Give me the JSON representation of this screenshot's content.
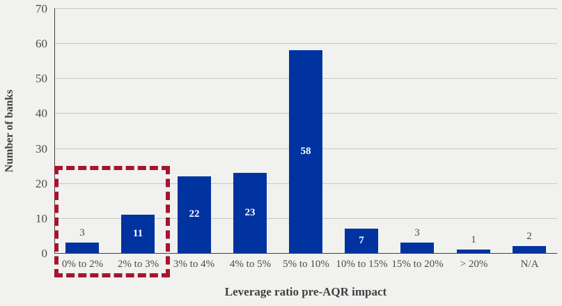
{
  "chart_data": {
    "type": "bar",
    "categories": [
      "0% to 2%",
      "2% to 3%",
      "3% to 4%",
      "4% to 5%",
      "5% to 10%",
      "10% to 15%",
      "15% to 20%",
      "> 20%",
      "N/A"
    ],
    "values": [
      3,
      11,
      22,
      23,
      58,
      7,
      3,
      1,
      2
    ],
    "data_label_placement": [
      "above",
      "inside",
      "inside",
      "inside",
      "inside",
      "inside",
      "above",
      "above",
      "above"
    ],
    "title": "",
    "xlabel": "Leverage ratio pre-AQR impact",
    "ylabel": "Number of banks",
    "ylim": [
      0,
      70
    ],
    "yticks": [
      0,
      10,
      20,
      30,
      40,
      50,
      60,
      70
    ],
    "grid": true,
    "legend": "none",
    "bar_color": "#0033A0",
    "annotation": {
      "type": "dashed-rectangle-highlight",
      "highlighted_categories": [
        "0% to 2%",
        "2% to 3%"
      ],
      "color": "#A51530"
    },
    "colors": {
      "background": "#F1F1EF",
      "gridline": "#C6C6C6",
      "axis_line": "#3F3F3F",
      "tick_text": "#4A4A4A",
      "inside_label_text": "#FFFFFF"
    }
  }
}
